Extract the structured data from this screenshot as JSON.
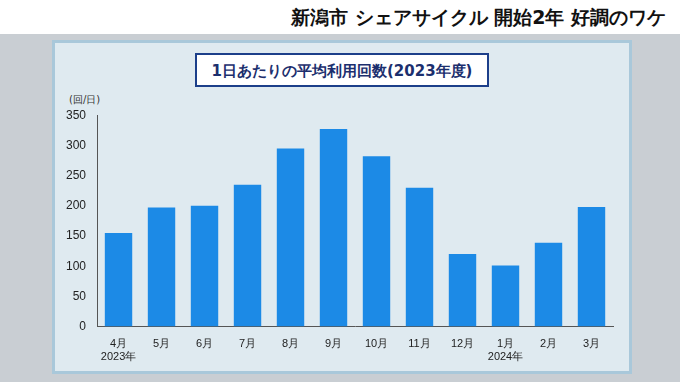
{
  "header": "新潟市 シェアサイクル 開始2年 好調のワケ",
  "chart_data": {
    "type": "bar",
    "title": "1日あたりの平均利用回数(2023年度)",
    "y_label": "(回/日)",
    "categories": [
      [
        "4月",
        "2023年"
      ],
      "5月",
      "6月",
      "7月",
      "8月",
      "9月",
      "10月",
      "11月",
      "12月",
      [
        "1月",
        "2024年"
      ],
      "2月",
      "3月"
    ],
    "values": [
      155,
      197,
      200,
      235,
      295,
      327,
      282,
      230,
      120,
      101,
      139,
      198
    ],
    "color": "#1c8ae6",
    "ylim": [
      0,
      350
    ],
    "yticks": [
      0,
      50,
      100,
      150,
      200,
      250,
      300,
      350
    ],
    "grid": false
  }
}
